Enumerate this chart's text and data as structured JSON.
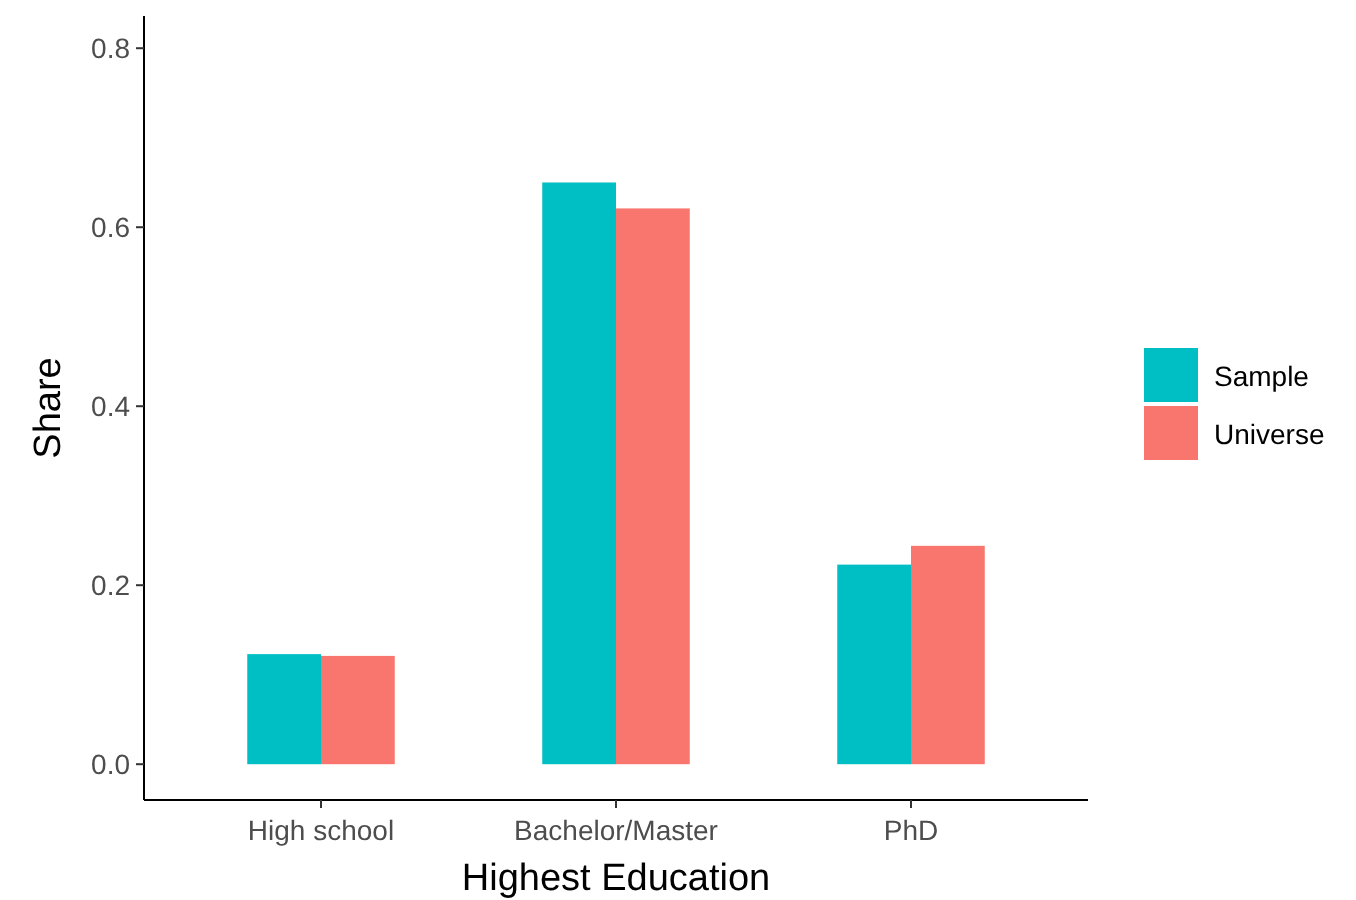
{
  "chart_data": {
    "type": "bar",
    "xlabel": "Highest Education",
    "ylabel": "Share",
    "categories": [
      "High school",
      "Bachelor/Master",
      "PhD"
    ],
    "series": [
      {
        "name": "Sample",
        "color": "#00bfc4",
        "values": [
          0.123,
          0.65,
          0.223
        ]
      },
      {
        "name": "Universe",
        "color": "#f8766d",
        "values": [
          0.121,
          0.621,
          0.244
        ]
      }
    ],
    "ylim": [
      -0.04,
      0.836
    ],
    "yticks": [
      {
        "value": 0,
        "label": "0.0"
      },
      {
        "value": 0.2,
        "label": "0.2"
      },
      {
        "value": 0.4,
        "label": "0.4"
      },
      {
        "value": 0.6,
        "label": "0.6"
      },
      {
        "value": 0.8,
        "label": "0.8"
      }
    ],
    "grid": false,
    "legend": "right"
  }
}
